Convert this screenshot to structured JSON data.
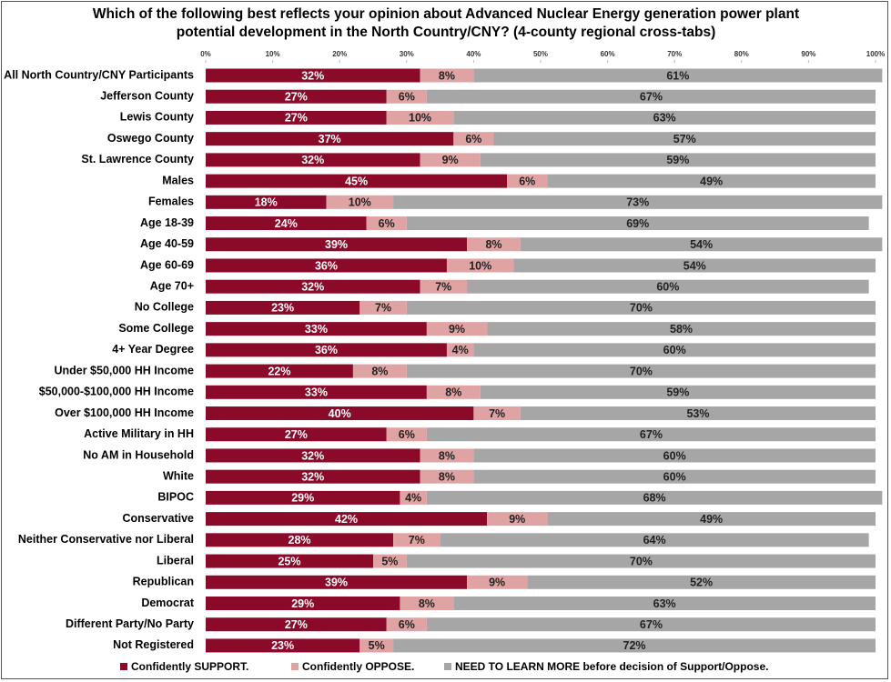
{
  "chart_data": {
    "type": "stacked-bar-horizontal",
    "title": "Which of the following best reflects your opinion about Advanced Nuclear Energy generation power plant potential development in the North Country/CNY? (4-county regional cross-tabs)",
    "categories": [
      "All North Country/CNY Participants",
      "Jefferson County",
      "Lewis County",
      "Oswego County",
      "St. Lawrence County",
      "Males",
      "Females",
      "Age 18-39",
      "Age 40-59",
      "Age 60-69",
      "Age 70+",
      "No College",
      "Some College",
      "4+ Year Degree",
      "Under $50,000 HH Income",
      "$50,000-$100,000 HH Income",
      "Over $100,000 HH Income",
      "Active Military in HH",
      "No AM in Household",
      "White",
      "BIPOC",
      "Conservative",
      "Neither Conservative nor Liberal",
      "Liberal",
      "Republican",
      "Democrat",
      "Different Party/No Party",
      "Not Registered"
    ],
    "series": [
      {
        "name": "Confidently SUPPORT.",
        "color": "#8b0a2a",
        "values": [
          32,
          27,
          27,
          37,
          32,
          45,
          18,
          24,
          39,
          36,
          32,
          23,
          33,
          36,
          22,
          33,
          40,
          27,
          32,
          32,
          29,
          42,
          28,
          25,
          39,
          29,
          27,
          23
        ],
        "value_labels": [
          "32%",
          "27%",
          "27%",
          "37%",
          "32%",
          "45%",
          "18%",
          "24%",
          "39%",
          "36%",
          "32%",
          "23%",
          "33%",
          "36%",
          "22%",
          "33%",
          "40%",
          "27%",
          "32%",
          "32%",
          "29%",
          "42%",
          "28%",
          "25%",
          "39%",
          "29%",
          "27%",
          "23%"
        ]
      },
      {
        "name": "Confidently OPPOSE.",
        "color": "#e0a3a3",
        "values": [
          8,
          6,
          10,
          6,
          9,
          6,
          10,
          6,
          8,
          10,
          7,
          7,
          9,
          4,
          8,
          8,
          7,
          6,
          8,
          8,
          4,
          9,
          7,
          5,
          9,
          8,
          6,
          5
        ],
        "value_labels": [
          "8%",
          "6%",
          "10%",
          "6%",
          "9%",
          "6%",
          "10%",
          "6%",
          "8%",
          "10%",
          "7%",
          "7%",
          "9%",
          "4%",
          "8%",
          "8%",
          "7%",
          "6%",
          "8%",
          "8%",
          "4%",
          "9%",
          "7%",
          "5%",
          "9%",
          "8%",
          "6%",
          "5%"
        ]
      },
      {
        "name": "NEED TO LEARN MORE before decision of Support/Oppose.",
        "color": "#a6a6a6",
        "values": [
          61,
          67,
          63,
          57,
          59,
          49,
          73,
          69,
          54,
          54,
          60,
          70,
          58,
          60,
          70,
          59,
          53,
          67,
          60,
          60,
          68,
          49,
          64,
          70,
          52,
          63,
          67,
          72
        ],
        "value_labels": [
          "61%",
          "67%",
          "63%",
          "57%",
          "59%",
          "49%",
          "73%",
          "69%",
          "54%",
          "54%",
          "60%",
          "70%",
          "58%",
          "60%",
          "70%",
          "59%",
          "53%",
          "67%",
          "60%",
          "60%",
          "68%",
          "49%",
          "64%",
          "70%",
          "52%",
          "63%",
          "67%",
          "72%"
        ]
      }
    ],
    "xlim": [
      0,
      100
    ],
    "xticks": [
      {
        "value": 0,
        "label": "0%"
      },
      {
        "value": 10,
        "label": "10%"
      },
      {
        "value": 20,
        "label": "20%"
      },
      {
        "value": 30,
        "label": "30%"
      },
      {
        "value": 40,
        "label": "40%"
      },
      {
        "value": 50,
        "label": "50%"
      },
      {
        "value": 60,
        "label": "60%"
      },
      {
        "value": 70,
        "label": "70%"
      },
      {
        "value": 80,
        "label": "80%"
      },
      {
        "value": 90,
        "label": "90%"
      },
      {
        "value": 100,
        "label": "100%"
      }
    ],
    "legend": "bottom"
  }
}
